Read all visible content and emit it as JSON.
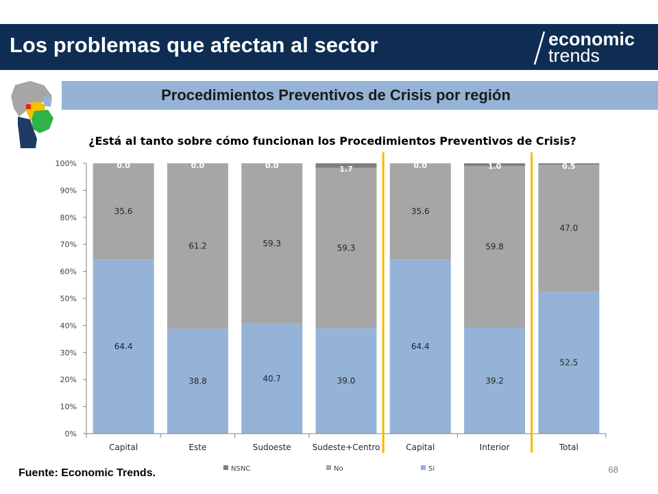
{
  "header": {
    "title": "Los problemas que afectan al sector",
    "logo_line1": "economic",
    "logo_line2": "trends"
  },
  "subtitle": "Procedimientos Preventivos de Crisis por región",
  "footer": {
    "source": "Fuente: Economic Trends.",
    "page_number": "68"
  },
  "colors": {
    "header_bg": "#0f2d52",
    "subtitle_band": "#95b3d7",
    "si": "#95b3d7",
    "no": "#a6a6a6",
    "nsnc": "#7f7f7f",
    "separator": "#f5b800"
  },
  "chart_data": {
    "type": "bar",
    "stacked": true,
    "percent_stacked": true,
    "title": "¿Está al tanto sobre cómo funcionan los Procedimientos Preventivos de Crisis?",
    "categories": [
      "Capital",
      "Este",
      "Sudoeste",
      "Sudeste+Centro",
      "Capital",
      "Interior",
      "Total"
    ],
    "series": [
      {
        "name": "Si",
        "color": "#95b3d7",
        "values": [
          64.4,
          38.8,
          40.7,
          39.0,
          64.4,
          39.2,
          52.5
        ],
        "labels": [
          "64.4",
          "38.8",
          "40.7",
          "39.0",
          "64.4",
          "39.2",
          "52.5"
        ]
      },
      {
        "name": "No",
        "color": "#a6a6a6",
        "values": [
          35.6,
          61.2,
          59.3,
          59.3,
          35.6,
          59.8,
          47.0
        ],
        "labels": [
          "35.6",
          "61.2",
          "59.3",
          "59.3",
          "35.6",
          "59.8",
          "47.0"
        ]
      },
      {
        "name": "NSNC",
        "color": "#7f7f7f",
        "values": [
          0.0,
          0.0,
          0.0,
          1.7,
          0.0,
          1.0,
          0.5
        ],
        "labels": [
          "0.0",
          "0.0",
          "0.0",
          "1.7",
          "0.0",
          "1.0",
          "0.5"
        ]
      }
    ],
    "legend_order": [
      "NSNC",
      "No",
      "Si"
    ],
    "y_ticks": [
      "0%",
      "10%",
      "20%",
      "30%",
      "40%",
      "50%",
      "60%",
      "70%",
      "80%",
      "90%",
      "100%"
    ],
    "ylim": [
      0,
      100
    ],
    "group_separators_after": [
      3,
      5
    ],
    "legend_position": "bottom",
    "grid": false
  }
}
